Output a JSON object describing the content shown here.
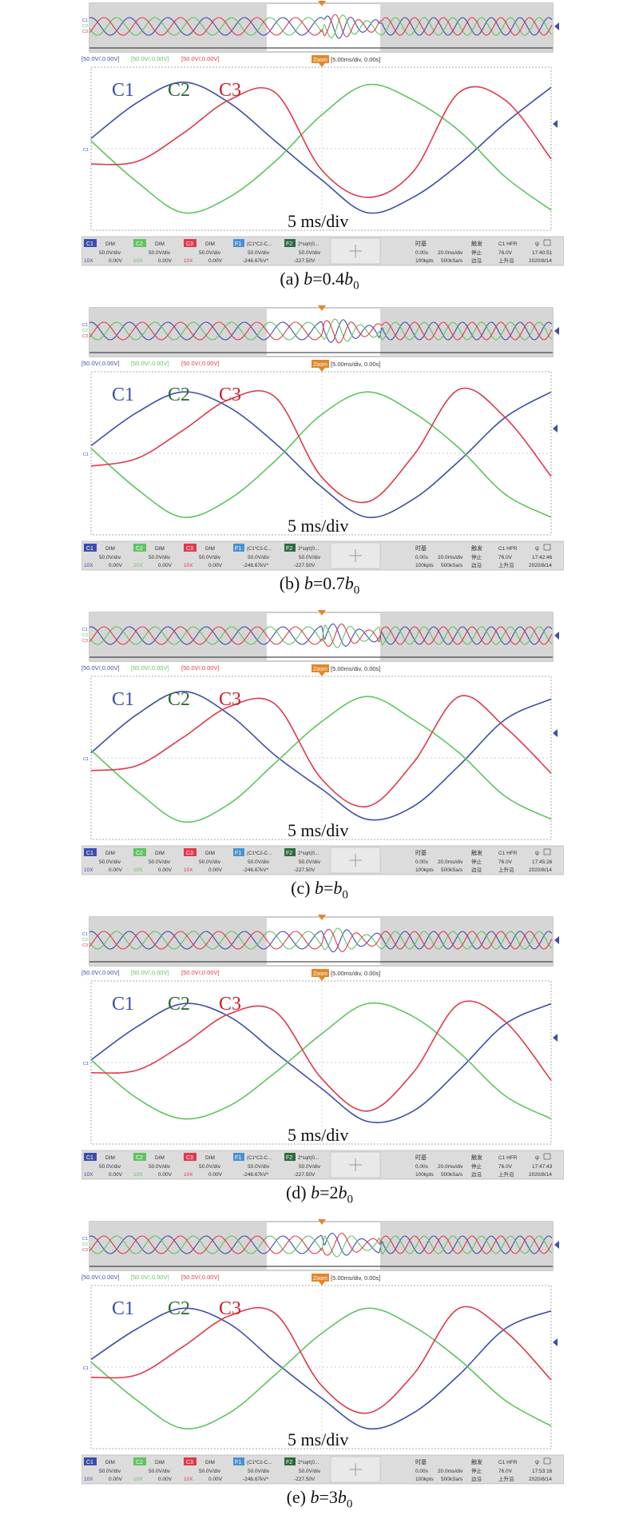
{
  "colors": {
    "c1": "#3c4eaa",
    "c2": "#5fc45f",
    "c3": "#e0394a",
    "label_c2": "#2f6b33",
    "label_c3": "#d11f2c",
    "zoom": "#e2872b"
  },
  "common": {
    "cursor_markers": [
      "C1",
      "C2",
      "C3"
    ],
    "top_readouts": [
      "[50.0V/,0.00V]",
      "[50.0V/,0.00V]",
      "[50.0V/,0.00V]"
    ],
    "zoom_badge": "Zoom",
    "zoom_readout": "[5.00ms/div, 0.00s]",
    "time_div_label": "5 ms/div",
    "status": {
      "ch1": [
        "C1",
        "DIM",
        "50.0V/div",
        "10X",
        "0.00V"
      ],
      "ch2": [
        "C2",
        "DIM",
        "50.0V/div",
        "10X",
        "0.00V"
      ],
      "ch3": [
        "C3",
        "DIM",
        "50.0V/div",
        "10X",
        "0.00V"
      ],
      "f1": [
        "F1",
        "(C1*C2-C...",
        "50.0V/div",
        "-246.67kV*"
      ],
      "f2": [
        "F2",
        "2*sqrt(0...",
        "50.0V/div",
        "-227.50V"
      ],
      "timebase": [
        "时基",
        "0.00s",
        "20.0ms/div",
        "100kpts",
        "500kSa/s"
      ],
      "trigger": [
        "触发",
        "C1 HFR",
        "停止",
        "76.0V",
        "边沿",
        "上升沿"
      ]
    }
  },
  "panels": [
    {
      "caption_prefix": "(a) ",
      "caption_var": "b",
      "caption_eq": "=0.4",
      "caption_var2": "b",
      "caption_sub": "0",
      "time": "17:40:51",
      "date": "2020/8/14"
    },
    {
      "caption_prefix": "(b) ",
      "caption_var": "b",
      "caption_eq": "=0.7",
      "caption_var2": "b",
      "caption_sub": "0",
      "time": "17:42:46",
      "date": "2020/8/14"
    },
    {
      "caption_prefix": "(c) ",
      "caption_var": "b",
      "caption_eq": "=",
      "caption_var2": "b",
      "caption_sub": "0",
      "time": "17:45:26",
      "date": "2020/8/14"
    },
    {
      "caption_prefix": "(d) ",
      "caption_var": "b",
      "caption_eq": "=2",
      "caption_var2": "b",
      "caption_sub": "0",
      "time": "17:47:43",
      "date": "2020/8/14"
    },
    {
      "caption_prefix": "(e) ",
      "caption_var": "b",
      "caption_eq": "=3",
      "caption_var2": "b",
      "caption_sub": "0",
      "time": "17:53:16",
      "date": "2020/8/14"
    }
  ],
  "chart_data": [
    {
      "type": "line",
      "caption": "(a) b=0.4b0",
      "x_div": [
        0,
        1,
        2,
        3,
        4,
        5,
        6,
        7,
        8,
        9,
        10
      ],
      "series": [
        {
          "name": "C1",
          "values": [
            0.4,
            1.8,
            2.6,
            1.8,
            0.3,
            -1.2,
            -2.5,
            -1.9,
            -0.6,
            1.0,
            2.4
          ]
        },
        {
          "name": "C2",
          "values": [
            0.3,
            -1.3,
            -2.5,
            -1.9,
            -0.5,
            1.3,
            2.5,
            1.9,
            0.7,
            -1.1,
            -2.4
          ]
        },
        {
          "name": "C3",
          "values": [
            -0.6,
            -0.5,
            0.6,
            1.9,
            2.2,
            -0.8,
            -1.9,
            -0.9,
            2.2,
            1.9,
            -0.4
          ]
        }
      ]
    },
    {
      "type": "line",
      "caption": "(b) b=0.7b0",
      "x_div": [
        0,
        1,
        2,
        3,
        4,
        5,
        6,
        7,
        8,
        9,
        10
      ],
      "series": [
        {
          "name": "C1",
          "values": [
            0.3,
            1.6,
            2.4,
            1.8,
            0.4,
            -1.3,
            -2.5,
            -1.8,
            -0.3,
            1.4,
            2.4
          ]
        },
        {
          "name": "C2",
          "values": [
            0.2,
            -1.4,
            -2.5,
            -1.8,
            -0.3,
            1.5,
            2.4,
            1.6,
            0.2,
            -1.6,
            -2.5
          ]
        },
        {
          "name": "C3",
          "values": [
            -0.5,
            -0.2,
            0.9,
            2.1,
            2.2,
            -0.9,
            -1.9,
            -0.1,
            2.5,
            1.4,
            -0.9
          ]
        }
      ]
    },
    {
      "type": "line",
      "caption": "(c) b=b0",
      "x_div": [
        0,
        1,
        2,
        3,
        4,
        5,
        6,
        7,
        8,
        9,
        10
      ],
      "series": [
        {
          "name": "C1",
          "values": [
            0.2,
            1.7,
            2.6,
            1.7,
            0.1,
            -1.2,
            -2.4,
            -1.9,
            -0.3,
            1.5,
            2.3
          ]
        },
        {
          "name": "C2",
          "values": [
            0.3,
            -1.3,
            -2.5,
            -1.8,
            -0.2,
            1.4,
            2.4,
            1.5,
            0.2,
            -1.5,
            -2.4
          ]
        },
        {
          "name": "C3",
          "values": [
            -0.5,
            -0.3,
            0.8,
            2.0,
            2.1,
            -0.8,
            -1.9,
            -0.2,
            2.4,
            1.2,
            -0.6
          ]
        }
      ]
    },
    {
      "type": "line",
      "caption": "(d) b=2b0",
      "x_div": [
        0,
        1,
        2,
        3,
        4,
        5,
        6,
        7,
        8,
        9,
        10
      ],
      "series": [
        {
          "name": "C1",
          "values": [
            0.1,
            1.4,
            2.3,
            1.8,
            0.4,
            -1.0,
            -2.3,
            -1.9,
            -0.3,
            1.5,
            2.3
          ]
        },
        {
          "name": "C2",
          "values": [
            0.1,
            -1.4,
            -2.2,
            -1.7,
            -0.4,
            1.1,
            2.3,
            1.8,
            0.4,
            -1.3,
            -2.2
          ]
        },
        {
          "name": "C3",
          "values": [
            -0.4,
            -0.3,
            0.7,
            1.9,
            2.0,
            -0.6,
            -1.9,
            -0.4,
            2.3,
            1.6,
            -0.7
          ]
        }
      ]
    },
    {
      "type": "line",
      "caption": "(e) b=3b0",
      "x_div": [
        0,
        1,
        2,
        3,
        4,
        5,
        6,
        7,
        8,
        9,
        10
      ],
      "series": [
        {
          "name": "C1",
          "values": [
            0.3,
            1.5,
            2.3,
            1.7,
            0.2,
            -1.2,
            -2.4,
            -1.8,
            -0.3,
            1.5,
            2.2
          ]
        },
        {
          "name": "C2",
          "values": [
            0.2,
            -1.3,
            -2.4,
            -1.8,
            -0.3,
            1.3,
            2.3,
            1.6,
            0.3,
            -1.3,
            -2.3
          ]
        },
        {
          "name": "C3",
          "values": [
            -0.4,
            -0.3,
            0.8,
            2.0,
            2.1,
            -0.7,
            -1.8,
            -0.3,
            2.3,
            1.4,
            -0.5
          ]
        }
      ]
    }
  ]
}
